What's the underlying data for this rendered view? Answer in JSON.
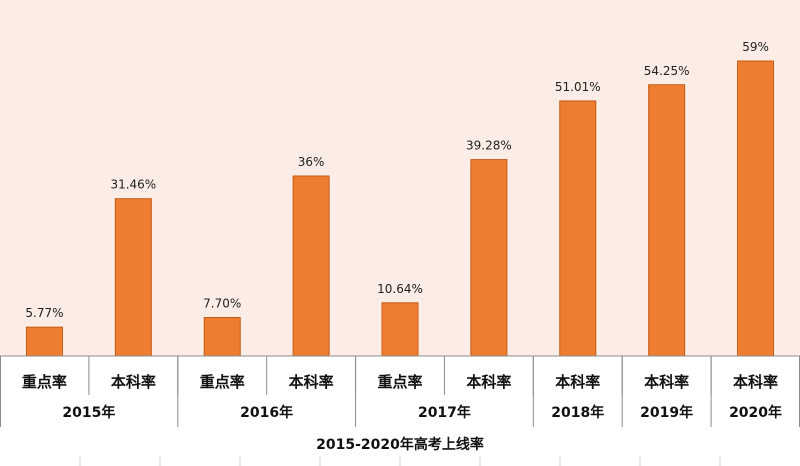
{
  "chart_data": {
    "type": "bar",
    "categories": [
      "重点率",
      "本科率",
      "重点率",
      "本科率",
      "重点率",
      "本科率",
      "本科率",
      "本科率",
      "本科率"
    ],
    "groups": [
      "2015年",
      "2015年",
      "2016年",
      "2016年",
      "2017年",
      "2017年",
      "2018年",
      "2019年",
      "2020年"
    ],
    "group_labels": [
      "2015年",
      "2016年",
      "2017年",
      "2018年",
      "2019年",
      "2020年"
    ],
    "values": [
      5.77,
      31.46,
      7.7,
      36,
      10.64,
      39.28,
      51.01,
      54.25,
      59
    ],
    "data_labels": [
      "5.77%",
      "31.46%",
      "7.70%",
      "36%",
      "10.64%",
      "39.28%",
      "51.01%",
      "54.25%",
      "59%"
    ],
    "title": "",
    "xlabel": "2015-2020年高考上线率",
    "ylabel": "",
    "ylim": [
      0,
      60
    ],
    "grid": false,
    "legend": "none",
    "colors": {
      "bar": "#ED7D31",
      "bar_edge": "#C55A11",
      "plot_background": "#FBEDE6",
      "axis": "#8C8C8C"
    }
  }
}
